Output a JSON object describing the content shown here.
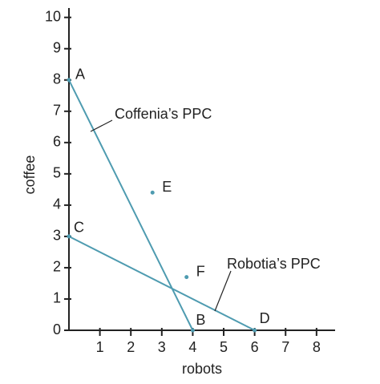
{
  "chart_data": {
    "type": "line",
    "x_label": "robots",
    "y_label": "coffee",
    "xlim": [
      0,
      8.6
    ],
    "ylim": [
      0,
      10.3
    ],
    "xticks": [
      1,
      2,
      3,
      4,
      5,
      6,
      7,
      8
    ],
    "yticks": [
      0,
      1,
      2,
      3,
      4,
      5,
      6,
      7,
      8,
      9,
      10
    ],
    "series": [
      {
        "name": "Coffenia’s PPC",
        "color": "#4e9bb0",
        "x": [
          0,
          4
        ],
        "values": [
          8,
          0
        ],
        "point_labels": [
          "A",
          "B"
        ]
      },
      {
        "name": "Robotia’s PPC",
        "color": "#4e9bb0",
        "x": [
          0,
          6
        ],
        "values": [
          3,
          0
        ],
        "point_labels": [
          "C",
          "D"
        ]
      }
    ],
    "points": [
      {
        "label": "E",
        "x": 2.7,
        "y": 4.4,
        "color": "#4e9bb0"
      },
      {
        "label": "F",
        "x": 3.8,
        "y": 1.7,
        "color": "#4e9bb0"
      }
    ]
  }
}
